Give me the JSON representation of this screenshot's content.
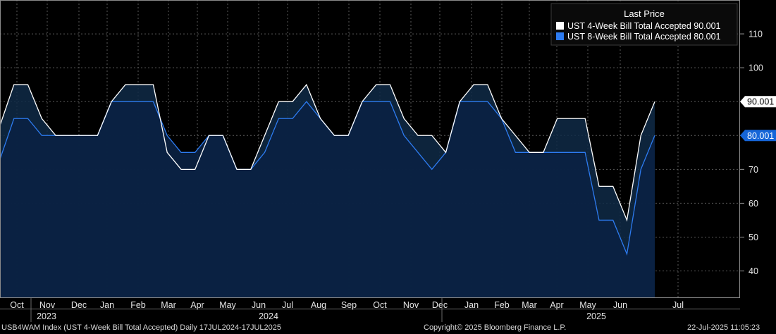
{
  "footer": {
    "left": "USB4WAM Index (UST 4-Week Bill Total Accepted)  Daily 17JUL2024-17JUL2025",
    "center": "Copyright© 2025 Bloomberg Finance L.P.",
    "right": "22-Jul-2025 11:05:23"
  },
  "chart_data": {
    "type": "line",
    "title": "",
    "xlabel": "",
    "ylabel": "",
    "ylim": [
      32,
      120
    ],
    "yticks": [
      40,
      50,
      60,
      70,
      80,
      90,
      100,
      110
    ],
    "grid": true,
    "legend": {
      "title": "Last Price",
      "placement": "top-right"
    },
    "x_axis": {
      "months": [
        "Oct",
        "Nov",
        "Dec",
        "Jan",
        "Feb",
        "Mar",
        "Apr",
        "May",
        "Jun",
        "Jul",
        "Aug",
        "Sep",
        "Oct",
        "Nov",
        "Dec",
        "Jan",
        "Feb",
        "Mar",
        "Apr",
        "May",
        "Jun",
        "Jul"
      ],
      "years": [
        "2023",
        "2024",
        "2025"
      ]
    },
    "series": [
      {
        "name": "UST 4-Week Bill Total Accepted 90.001",
        "last_value": "90.001",
        "color": "#ffffff",
        "values": [
          83,
          95,
          95,
          85,
          80,
          80,
          80,
          80,
          90,
          95,
          95,
          95,
          75,
          70,
          70,
          80,
          80,
          70,
          70,
          80,
          90,
          90,
          95,
          85,
          80,
          80,
          90,
          95,
          95,
          85,
          80,
          80,
          75,
          90,
          95,
          95,
          85,
          80,
          75,
          75,
          85,
          85,
          85,
          65,
          65,
          55,
          80,
          90
        ]
      },
      {
        "name": "UST 8-Week Bill Total Accepted 80.001",
        "last_value": "80.001",
        "color": "#2d7bf0",
        "values": [
          73,
          85,
          85,
          80,
          80,
          80,
          80,
          80,
          90,
          90,
          90,
          90,
          80,
          75,
          75,
          80,
          80,
          70,
          70,
          75,
          85,
          85,
          90,
          85,
          80,
          80,
          90,
          90,
          90,
          80,
          75,
          70,
          75,
          90,
          90,
          90,
          85,
          75,
          75,
          75,
          75,
          75,
          75,
          55,
          55,
          45,
          70,
          80
        ]
      }
    ]
  }
}
